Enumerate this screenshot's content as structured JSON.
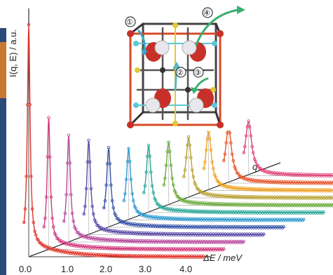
{
  "chart_data": {
    "type": "line",
    "xlabel": "ΔE / meV",
    "ylabel": "I(q, E) / a.u.",
    "depth_label": "q",
    "x_ticks": [
      "0.0",
      "1.0",
      "2.0",
      "3.0",
      "4.0"
    ],
    "xlim": [
      -0.1,
      4.4
    ],
    "grid": false,
    "series": [
      {
        "color": "#e0332a",
        "peak_height": 1.0,
        "width": 0.04
      },
      {
        "color": "#d4387c",
        "peak_height": 0.63,
        "width": 0.045
      },
      {
        "color": "#b84a9e",
        "peak_height": 0.51,
        "width": 0.05
      },
      {
        "color": "#5a4aa8",
        "peak_height": 0.45,
        "width": 0.055
      },
      {
        "color": "#3753a8",
        "peak_height": 0.38,
        "width": 0.06
      },
      {
        "color": "#2e9ad0",
        "peak_height": 0.34,
        "width": 0.065
      },
      {
        "color": "#2aa89a",
        "peak_height": 0.32,
        "width": 0.07
      },
      {
        "color": "#6aaa3a",
        "peak_height": 0.3,
        "width": 0.075
      },
      {
        "color": "#b8a232",
        "peak_height": 0.29,
        "width": 0.08
      },
      {
        "color": "#f0a020",
        "peak_height": 0.28,
        "width": 0.085
      },
      {
        "color": "#e8552a",
        "peak_height": 0.27,
        "width": 0.09
      },
      {
        "color": "#e0457a",
        "peak_height": 0.26,
        "width": 0.095
      }
    ]
  },
  "inset": {
    "labels": [
      "①",
      "②",
      "③",
      "④"
    ]
  }
}
